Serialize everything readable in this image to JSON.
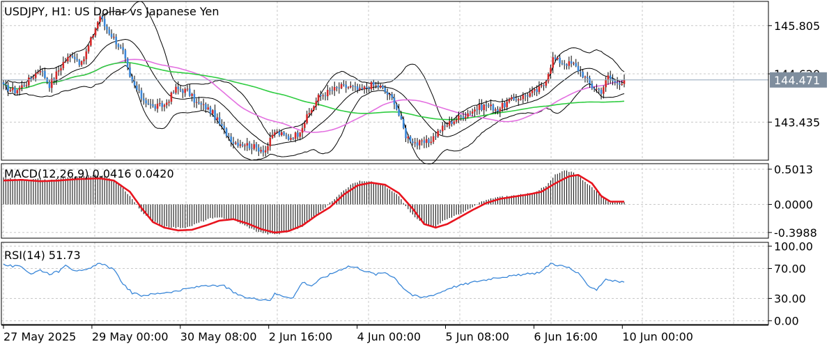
{
  "header": {
    "symbol_title": "USDJPY, H1:  US Dollar vs Japanese Yen"
  },
  "colors": {
    "bull": "#d62828",
    "bear": "#3a87d8",
    "bollinger": "#000000",
    "ma_green": "#2ecc40",
    "ma_violet": "#e36fe0",
    "macd_signal": "#e8141e",
    "rsi_line": "#3a87d8",
    "price_tag_bg": "#7f8e9e",
    "grid": "#c8c8c8"
  },
  "chart_data": [
    {
      "panel": "price",
      "type": "candlestick",
      "title": "USDJPY, H1:  US Dollar vs Japanese Yen",
      "ylim": [
        142.5,
        146.4
      ],
      "y_ticks": [
        "145.805",
        "144.620",
        "143.435"
      ],
      "current_price": "144.471",
      "indicators": [
        "Bollinger Bands",
        "Moving Average",
        "Moving Average"
      ],
      "anchors": [
        [
          0,
          144.3
        ],
        [
          5,
          144.2
        ],
        [
          10,
          144.4
        ],
        [
          16,
          144.75
        ],
        [
          20,
          144.35
        ],
        [
          26,
          144.9
        ],
        [
          30,
          145.1
        ],
        [
          34,
          144.85
        ],
        [
          38,
          145.45
        ],
        [
          42,
          146.05
        ],
        [
          44,
          145.8
        ],
        [
          48,
          145.5
        ],
        [
          52,
          145.15
        ],
        [
          55,
          144.5
        ],
        [
          60,
          144.05
        ],
        [
          65,
          143.8
        ],
        [
          70,
          143.85
        ],
        [
          75,
          144.25
        ],
        [
          80,
          144.2
        ],
        [
          84,
          143.9
        ],
        [
          88,
          143.8
        ],
        [
          91,
          143.65
        ],
        [
          95,
          143.3
        ],
        [
          100,
          142.95
        ],
        [
          105,
          142.9
        ],
        [
          110,
          142.8
        ],
        [
          114,
          142.75
        ],
        [
          118,
          143.2
        ],
        [
          124,
          143.05
        ],
        [
          128,
          143.15
        ],
        [
          132,
          143.55
        ],
        [
          137,
          144.05
        ],
        [
          142,
          144.2
        ],
        [
          147,
          144.3
        ],
        [
          151,
          144.3
        ],
        [
          155,
          144.2
        ],
        [
          160,
          144.35
        ],
        [
          164,
          144.3
        ],
        [
          170,
          143.95
        ],
        [
          175,
          143.1
        ],
        [
          180,
          142.9
        ],
        [
          185,
          142.95
        ],
        [
          190,
          143.25
        ],
        [
          195,
          143.45
        ],
        [
          200,
          143.6
        ],
        [
          205,
          143.75
        ],
        [
          210,
          143.85
        ],
        [
          215,
          143.75
        ],
        [
          220,
          143.95
        ],
        [
          225,
          144.05
        ],
        [
          232,
          144.2
        ],
        [
          235,
          144.35
        ],
        [
          239,
          145.0
        ],
        [
          243,
          144.9
        ],
        [
          248,
          144.85
        ],
        [
          252,
          144.6
        ],
        [
          256,
          144.3
        ],
        [
          260,
          144.2
        ],
        [
          263,
          144.55
        ],
        [
          266,
          144.4
        ],
        [
          270,
          144.45
        ]
      ],
      "x_labels": [
        "27 May 2025",
        "29 May 00:00",
        "30 May 08:00",
        "2 Jun 16:00",
        "4 Jun 00:00",
        "5 Jun 08:00",
        "6 Jun 16:00",
        "10 Jun 00:00"
      ]
    },
    {
      "panel": "macd",
      "type": "histogram",
      "label": "MACD(12,26,9) 0.0416 0.0420",
      "ylim": [
        -0.48,
        0.58
      ],
      "y_ticks": [
        "0.5013",
        "0.0000",
        "-0.3988"
      ],
      "anchors": [
        [
          0,
          0.38
        ],
        [
          5,
          0.36
        ],
        [
          10,
          0.34
        ],
        [
          15,
          0.36
        ],
        [
          20,
          0.34
        ],
        [
          25,
          0.37
        ],
        [
          30,
          0.38
        ],
        [
          40,
          0.42
        ],
        [
          44,
          0.4
        ],
        [
          50,
          0.3
        ],
        [
          55,
          0.12
        ],
        [
          60,
          -0.1
        ],
        [
          65,
          -0.24
        ],
        [
          70,
          -0.31
        ],
        [
          75,
          -0.33
        ],
        [
          80,
          -0.33
        ],
        [
          85,
          -0.26
        ],
        [
          90,
          -0.2
        ],
        [
          95,
          -0.19
        ],
        [
          100,
          -0.22
        ],
        [
          105,
          -0.3
        ],
        [
          110,
          -0.38
        ],
        [
          115,
          -0.42
        ],
        [
          120,
          -0.42
        ],
        [
          130,
          -0.32
        ],
        [
          138,
          -0.1
        ],
        [
          142,
          0.02
        ],
        [
          147,
          0.18
        ],
        [
          152,
          0.3
        ],
        [
          155,
          0.33
        ],
        [
          160,
          0.32
        ],
        [
          165,
          0.28
        ],
        [
          172,
          0.12
        ],
        [
          178,
          -0.15
        ],
        [
          184,
          -0.3
        ],
        [
          188,
          -0.32
        ],
        [
          192,
          -0.22
        ],
        [
          198,
          -0.14
        ],
        [
          202,
          -0.08
        ],
        [
          208,
          0.04
        ],
        [
          214,
          0.1
        ],
        [
          220,
          0.12
        ],
        [
          226,
          0.14
        ],
        [
          230,
          0.16
        ],
        [
          236,
          0.26
        ],
        [
          240,
          0.42
        ],
        [
          244,
          0.48
        ],
        [
          248,
          0.46
        ],
        [
          254,
          0.3
        ],
        [
          260,
          0.12
        ],
        [
          264,
          0.03
        ],
        [
          270,
          0.04
        ]
      ],
      "signal_anchors": [
        [
          0,
          0.34
        ],
        [
          8,
          0.35
        ],
        [
          16,
          0.33
        ],
        [
          24,
          0.34
        ],
        [
          32,
          0.36
        ],
        [
          42,
          0.37
        ],
        [
          48,
          0.34
        ],
        [
          55,
          0.18
        ],
        [
          60,
          -0.05
        ],
        [
          65,
          -0.25
        ],
        [
          70,
          -0.33
        ],
        [
          76,
          -0.37
        ],
        [
          82,
          -0.36
        ],
        [
          88,
          -0.3
        ],
        [
          94,
          -0.23
        ],
        [
          100,
          -0.21
        ],
        [
          106,
          -0.27
        ],
        [
          112,
          -0.35
        ],
        [
          118,
          -0.4
        ],
        [
          124,
          -0.38
        ],
        [
          130,
          -0.3
        ],
        [
          136,
          -0.16
        ],
        [
          142,
          -0.04
        ],
        [
          148,
          0.14
        ],
        [
          154,
          0.27
        ],
        [
          160,
          0.31
        ],
        [
          166,
          0.28
        ],
        [
          172,
          0.16
        ],
        [
          178,
          -0.06
        ],
        [
          183,
          -0.28
        ],
        [
          188,
          -0.33
        ],
        [
          193,
          -0.28
        ],
        [
          198,
          -0.19
        ],
        [
          204,
          -0.08
        ],
        [
          210,
          0.02
        ],
        [
          216,
          0.08
        ],
        [
          222,
          0.11
        ],
        [
          228,
          0.14
        ],
        [
          234,
          0.18
        ],
        [
          240,
          0.3
        ],
        [
          246,
          0.4
        ],
        [
          250,
          0.42
        ],
        [
          256,
          0.3
        ],
        [
          260,
          0.12
        ],
        [
          264,
          0.04
        ],
        [
          270,
          0.04
        ]
      ]
    },
    {
      "panel": "rsi",
      "type": "line",
      "label": "RSI(14) 51.73",
      "ylim": [
        -5,
        105
      ],
      "y_ticks": [
        "100.00",
        "70.00",
        "30.00",
        "0.00"
      ],
      "anchors": [
        [
          0,
          75
        ],
        [
          4,
          73
        ],
        [
          8,
          72
        ],
        [
          12,
          63
        ],
        [
          16,
          68
        ],
        [
          20,
          63
        ],
        [
          24,
          66
        ],
        [
          27,
          76
        ],
        [
          30,
          69
        ],
        [
          34,
          66
        ],
        [
          38,
          70
        ],
        [
          42,
          78
        ],
        [
          44,
          75
        ],
        [
          48,
          68
        ],
        [
          52,
          50
        ],
        [
          56,
          37
        ],
        [
          60,
          34
        ],
        [
          66,
          36
        ],
        [
          70,
          38
        ],
        [
          76,
          40
        ],
        [
          80,
          43
        ],
        [
          84,
          45
        ],
        [
          88,
          48
        ],
        [
          92,
          46
        ],
        [
          96,
          47
        ],
        [
          100,
          38
        ],
        [
          104,
          32
        ],
        [
          108,
          30
        ],
        [
          112,
          29
        ],
        [
          116,
          28
        ],
        [
          118,
          36
        ],
        [
          122,
          33
        ],
        [
          126,
          31
        ],
        [
          130,
          52
        ],
        [
          134,
          47
        ],
        [
          138,
          56
        ],
        [
          142,
          62
        ],
        [
          146,
          68
        ],
        [
          150,
          73
        ],
        [
          154,
          71
        ],
        [
          158,
          66
        ],
        [
          162,
          62
        ],
        [
          166,
          65
        ],
        [
          170,
          58
        ],
        [
          174,
          44
        ],
        [
          178,
          34
        ],
        [
          182,
          31
        ],
        [
          186,
          34
        ],
        [
          190,
          38
        ],
        [
          194,
          44
        ],
        [
          198,
          47
        ],
        [
          202,
          50
        ],
        [
          206,
          53
        ],
        [
          210,
          55
        ],
        [
          214,
          58
        ],
        [
          218,
          59
        ],
        [
          222,
          60
        ],
        [
          226,
          62
        ],
        [
          230,
          63
        ],
        [
          234,
          66
        ],
        [
          238,
          77
        ],
        [
          242,
          74
        ],
        [
          246,
          71
        ],
        [
          250,
          63
        ],
        [
          254,
          48
        ],
        [
          258,
          42
        ],
        [
          262,
          56
        ],
        [
          266,
          53
        ],
        [
          270,
          51.73
        ]
      ]
    }
  ]
}
